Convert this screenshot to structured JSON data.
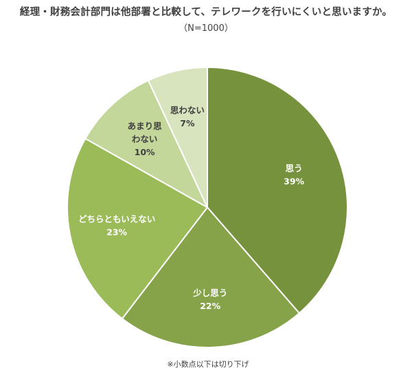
{
  "header": {
    "title": "経理・財務会計部門は他部署と比較して、テレワークを行いにくいと思いますか。",
    "subtitle": "（N=1000）"
  },
  "footnote": "※小数点以下は切り下げ",
  "chart_data": {
    "type": "pie",
    "title": "経理・財務会計部門は他部署と比較して、テレワークを行いにくいと思いますか。",
    "subtitle": "（N=1000）",
    "slices": [
      {
        "label": "思う",
        "value": 39,
        "value_label": "39%",
        "color": "#76923c",
        "text_color": "#ffffff"
      },
      {
        "label": "少し思う",
        "value": 22,
        "value_label": "22%",
        "color": "#86a34a",
        "text_color": "#ffffff"
      },
      {
        "label": "どちらともいえない",
        "value": 23,
        "value_label": "23%",
        "color": "#9bbb59",
        "text_color": "#ffffff"
      },
      {
        "label": "あまり思わない",
        "label_lines": [
          "あまり思",
          "わない"
        ],
        "value": 10,
        "value_label": "10%",
        "color": "#c4d79b",
        "text_color": "#404040"
      },
      {
        "label": "思わない",
        "value": 7,
        "value_label": "7%",
        "color": "#d7e4bd",
        "text_color": "#404040"
      }
    ],
    "start_angle_deg": 0,
    "direction": "clockwise",
    "legend": "none"
  }
}
